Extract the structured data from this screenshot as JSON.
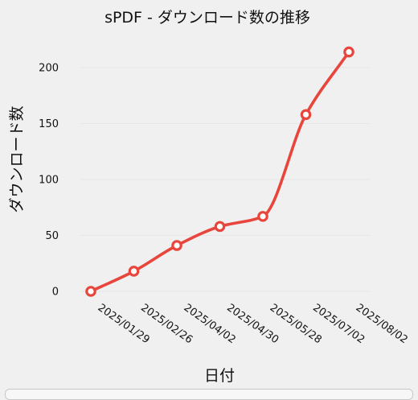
{
  "chart_data": {
    "type": "line",
    "title": "sPDF - ダウンロード数の推移",
    "xlabel": "日付",
    "ylabel": "ダウンロード数",
    "x_ticks": [
      "2025/01/29",
      "2025/02/26",
      "2025/04/02",
      "2025/04/30",
      "2025/05/28",
      "2025/07/02",
      "2025/08/02"
    ],
    "y_ticks": [
      0,
      50,
      100,
      150,
      200
    ],
    "ylim": [
      0,
      230
    ],
    "grid": true,
    "legend": "none",
    "series": [
      {
        "x": [
          "2025/01/29",
          "2025/02/26",
          "2025/04/02",
          "2025/04/30",
          "2025/05/28",
          "2025/07/02",
          "2025/08/02"
        ],
        "values": [
          0,
          18,
          41,
          58,
          67,
          158,
          214
        ]
      }
    ],
    "colors": {
      "line": "#e8453c",
      "marker_fill": "#ffffff",
      "grid": "#e6e6e6",
      "background": "#f0f0f0",
      "text": "#111111"
    }
  }
}
